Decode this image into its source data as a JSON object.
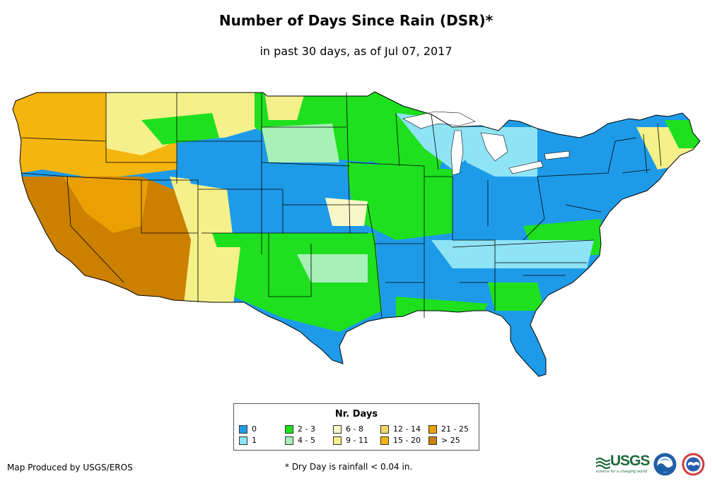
{
  "title": "Number of Days Since Rain (DSR)*",
  "subtitle": "in past 30 days, as of Jul 07, 2017",
  "legend": {
    "title": "Nr. Days",
    "items": [
      {
        "label": "0",
        "color": "#1e9be8"
      },
      {
        "label": "1",
        "color": "#8ee3f5"
      },
      {
        "label": "2 - 3",
        "color": "#1ee01e"
      },
      {
        "label": "4 - 5",
        "color": "#a8f0b8"
      },
      {
        "label": "6 - 8",
        "color": "#f7f7c8"
      },
      {
        "label": "9 - 11",
        "color": "#f5f08a"
      },
      {
        "label": "12 - 14",
        "color": "#f3d56a"
      },
      {
        "label": "15 - 20",
        "color": "#f5b50f"
      },
      {
        "label": "21 - 25",
        "color": "#eaa000"
      },
      {
        "label": "> 25",
        "color": "#cc8000"
      }
    ]
  },
  "credit": "Map Produced by USGS/EROS",
  "footnote": "* Dry Day is rainfall < 0.04 in.",
  "logos": {
    "usgs": "USGS",
    "usgs_tagline": "science for a changing world",
    "noaa": "noaa-logo",
    "nws": "nws-logo"
  },
  "map": {
    "background": "#ffffff",
    "border_color": "#000000",
    "lake_color": "#ffffff"
  }
}
